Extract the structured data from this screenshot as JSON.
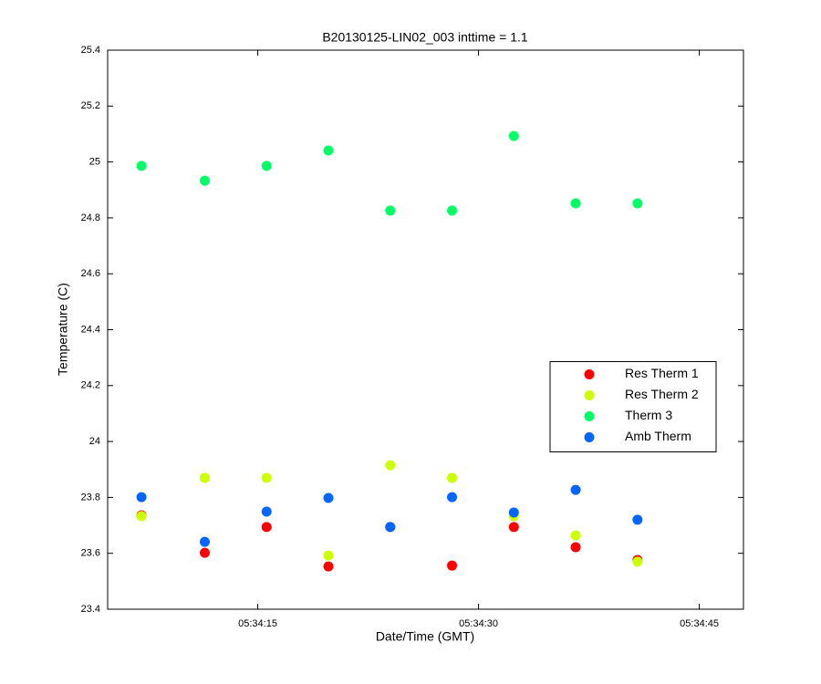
{
  "chart_data": {
    "type": "scatter",
    "title": "B20130125-LIN02_003 inttime = 1.1",
    "x_label": "Date/Time (GMT)",
    "y_label": "Temperature (C)",
    "x": [
      "05:34:07.1",
      "05:34:11.4",
      "05:34:15.6",
      "05:34:19.8",
      "05:34:24.0",
      "05:34:28.2",
      "05:34:32.4",
      "05:34:36.6",
      "05:34:40.8"
    ],
    "series": [
      {
        "name": "Res Therm 1",
        "color": "#ff0000",
        "values": [
          23.736,
          23.602,
          23.694,
          23.553,
          23.694,
          23.556,
          23.694,
          23.622,
          23.576
        ]
      },
      {
        "name": "Res Therm 2",
        "color": "#ccff00",
        "values": [
          23.733,
          23.87,
          23.87,
          23.592,
          23.915,
          23.87,
          23.733,
          23.664,
          23.57
        ]
      },
      {
        "name": "Therm 3",
        "color": "#00ff66",
        "values": [
          24.986,
          24.933,
          24.986,
          25.041,
          24.826,
          24.826,
          25.093,
          24.852,
          24.852
        ]
      },
      {
        "name": "Amb Therm",
        "color": "#0066ff",
        "values": [
          23.801,
          23.641,
          23.749,
          23.798,
          23.694,
          23.801,
          23.746,
          23.827,
          23.72
        ]
      }
    ],
    "xlim": [
      "05:34:04.8",
      "05:34:48.0"
    ],
    "xticks": [
      "05:34:15",
      "05:34:30",
      "05:34:45"
    ],
    "ylim": [
      23.4,
      25.4
    ],
    "yticks": [
      23.4,
      23.6,
      23.8,
      24,
      24.2,
      24.4,
      24.6,
      24.8,
      25,
      25.2,
      25.4
    ],
    "legend": "right"
  }
}
